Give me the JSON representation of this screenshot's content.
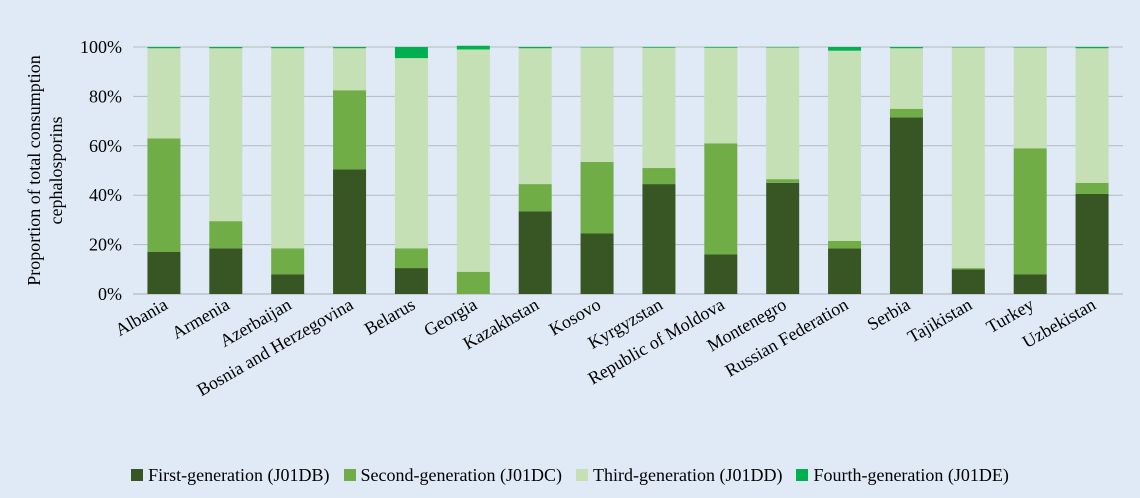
{
  "colors": {
    "background": "#dfeaf6",
    "gridline": "#b4b9bf",
    "series": [
      "#375623",
      "#70ad47",
      "#c5e0b4",
      "#00b050"
    ]
  },
  "chart_data": {
    "type": "bar",
    "stacked": true,
    "ylabel": "Proportion of  total consumption cephalosporins",
    "ylabel_lines": [
      "Proportion of  total consumption",
      "cephalosporins"
    ],
    "ylim": [
      0,
      100
    ],
    "yticks": [
      "0%",
      "20%",
      "40%",
      "60%",
      "80%",
      "100%"
    ],
    "grid": true,
    "legend_position": "bottom",
    "categories": [
      "Albania",
      "Armenia",
      "Azerbaijan",
      "Bosnia and Herzegovina",
      "Belarus",
      "Georgia",
      "Kazakhstan",
      "Kosovo",
      "Kyrgyzstan",
      "Republic of Moldova",
      "Montenegro",
      "Russian Federation",
      "Serbia",
      "Tajikistan",
      "Turkey",
      "Uzbekistan"
    ],
    "series": [
      {
        "name": "First-generation (J01DB)",
        "values": [
          17,
          18.5,
          8,
          50.5,
          10.5,
          0,
          33.5,
          24.5,
          44.5,
          16,
          45,
          18.5,
          71.5,
          10,
          8,
          40.5
        ]
      },
      {
        "name": "Second-generation (J01DC)",
        "values": [
          46,
          11,
          10.5,
          32,
          8,
          9,
          11,
          29,
          6.5,
          45,
          1.5,
          3,
          3.5,
          0.5,
          51,
          4.5
        ]
      },
      {
        "name": "Third-generation (J01DD)",
        "values": [
          36.5,
          70,
          81,
          17,
          77,
          90,
          55,
          46.3,
          48.7,
          38.7,
          53.3,
          77,
          24.5,
          89.3,
          40.8,
          54.5
        ]
      },
      {
        "name": "Fourth-generation (J01DE)",
        "values": [
          0.5,
          0.5,
          0.5,
          0.5,
          4.5,
          1.5,
          0.5,
          0.2,
          0.3,
          0.3,
          0.2,
          1.5,
          0.5,
          0.2,
          0.2,
          0.5
        ]
      }
    ]
  }
}
